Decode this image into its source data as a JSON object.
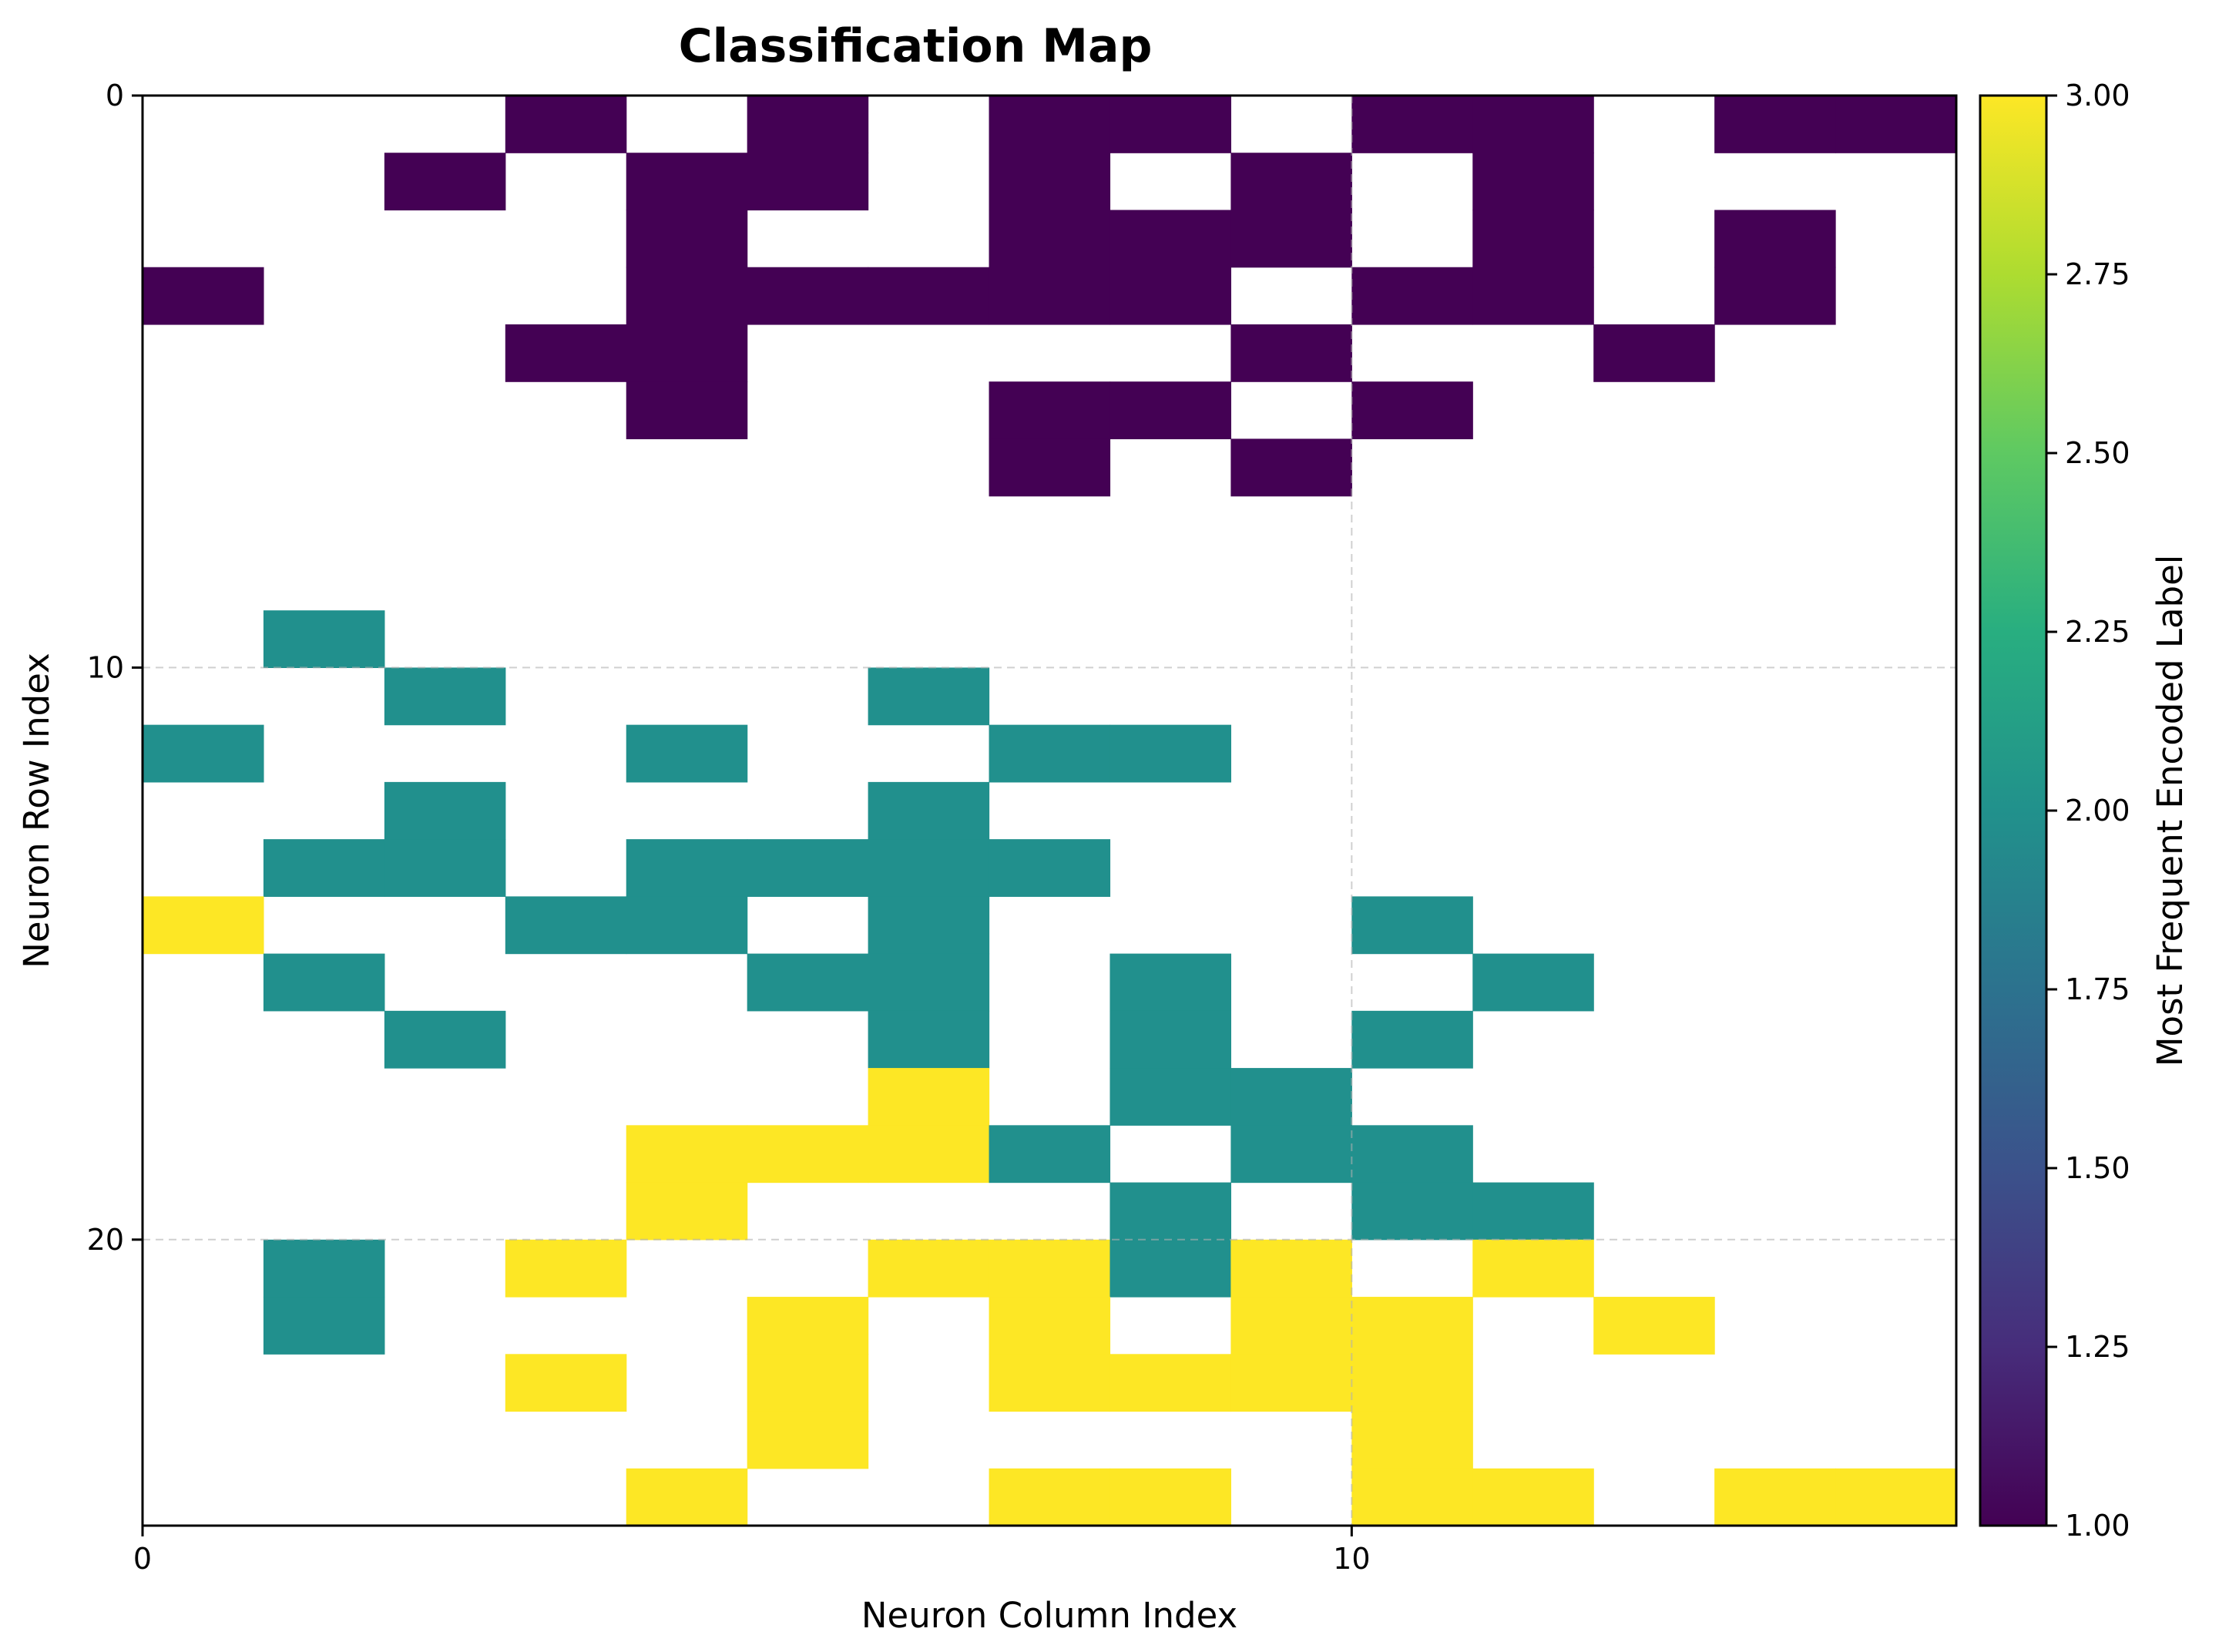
{
  "chart_data": {
    "type": "heatmap",
    "title": "Classification Map",
    "xlabel": "Neuron Column Index",
    "ylabel": "Neuron Row Index",
    "colorbar_label": "Most Frequent Encoded Label",
    "n_rows": 25,
    "n_cols": 15,
    "xlim": [
      0,
      15
    ],
    "ylim": [
      25,
      0
    ],
    "y_inverted": true,
    "x_ticks": [
      0,
      10
    ],
    "y_ticks": [
      0,
      10,
      20
    ],
    "x_tick_labels": [
      "0",
      "10"
    ],
    "y_tick_labels": [
      "0",
      "10",
      "20"
    ],
    "grid": true,
    "colormap": "viridis",
    "color_range": [
      1.0,
      3.0
    ],
    "colorbar_ticks": [
      1.0,
      1.25,
      1.5,
      1.75,
      2.0,
      2.25,
      2.5,
      2.75,
      3.0
    ],
    "colorbar_tick_labels": [
      "1.00",
      "1.25",
      "1.50",
      "1.75",
      "2.00",
      "2.25",
      "2.50",
      "2.75",
      "3.00"
    ],
    "empty_value": 0,
    "colors": {
      "1": "#440154",
      "2": "#21908d",
      "3": "#fde725"
    },
    "grid_values": [
      [
        0,
        0,
        0,
        1,
        0,
        1,
        0,
        1,
        1,
        0,
        1,
        1,
        0,
        1,
        1
      ],
      [
        0,
        0,
        1,
        0,
        1,
        1,
        0,
        1,
        0,
        1,
        0,
        1,
        0,
        0,
        0
      ],
      [
        0,
        0,
        0,
        0,
        1,
        0,
        0,
        1,
        1,
        1,
        0,
        1,
        0,
        1,
        0
      ],
      [
        1,
        0,
        0,
        0,
        1,
        1,
        1,
        1,
        1,
        0,
        1,
        1,
        0,
        1,
        0
      ],
      [
        0,
        0,
        0,
        1,
        1,
        0,
        0,
        0,
        0,
        1,
        0,
        0,
        1,
        0,
        0
      ],
      [
        0,
        0,
        0,
        0,
        1,
        0,
        0,
        1,
        1,
        0,
        1,
        0,
        0,
        0,
        0
      ],
      [
        0,
        0,
        0,
        0,
        0,
        0,
        0,
        1,
        0,
        1,
        0,
        0,
        0,
        0,
        0
      ],
      [
        0,
        0,
        0,
        0,
        0,
        0,
        0,
        0,
        0,
        0,
        0,
        0,
        0,
        0,
        0
      ],
      [
        0,
        0,
        0,
        0,
        0,
        0,
        0,
        0,
        0,
        0,
        0,
        0,
        0,
        0,
        0
      ],
      [
        0,
        2,
        0,
        0,
        0,
        0,
        0,
        0,
        0,
        0,
        0,
        0,
        0,
        0,
        0
      ],
      [
        0,
        0,
        2,
        0,
        0,
        0,
        2,
        0,
        0,
        0,
        0,
        0,
        0,
        0,
        0
      ],
      [
        2,
        0,
        0,
        0,
        2,
        0,
        0,
        2,
        2,
        0,
        0,
        0,
        0,
        0,
        0
      ],
      [
        0,
        0,
        2,
        0,
        0,
        0,
        2,
        0,
        0,
        0,
        0,
        0,
        0,
        0,
        0
      ],
      [
        0,
        2,
        2,
        0,
        2,
        2,
        2,
        2,
        0,
        0,
        0,
        0,
        0,
        0,
        0
      ],
      [
        3,
        0,
        0,
        2,
        2,
        0,
        2,
        0,
        0,
        0,
        2,
        0,
        0,
        0,
        0
      ],
      [
        0,
        2,
        0,
        0,
        0,
        2,
        2,
        0,
        2,
        0,
        0,
        2,
        0,
        0,
        0
      ],
      [
        0,
        0,
        2,
        0,
        0,
        0,
        2,
        0,
        2,
        0,
        2,
        0,
        0,
        0,
        0
      ],
      [
        0,
        0,
        0,
        0,
        0,
        0,
        3,
        0,
        2,
        2,
        0,
        0,
        0,
        0,
        0
      ],
      [
        0,
        0,
        0,
        0,
        3,
        3,
        3,
        2,
        0,
        2,
        2,
        0,
        0,
        0,
        0
      ],
      [
        0,
        0,
        0,
        0,
        3,
        0,
        0,
        0,
        2,
        0,
        2,
        2,
        0,
        0,
        0
      ],
      [
        0,
        2,
        0,
        3,
        0,
        0,
        3,
        3,
        2,
        3,
        0,
        3,
        0,
        0,
        0
      ],
      [
        0,
        2,
        0,
        0,
        0,
        3,
        0,
        3,
        0,
        3,
        3,
        0,
        3,
        0,
        0
      ],
      [
        0,
        0,
        0,
        3,
        0,
        3,
        0,
        3,
        3,
        3,
        3,
        0,
        0,
        0,
        0
      ],
      [
        0,
        0,
        0,
        0,
        0,
        3,
        0,
        0,
        0,
        0,
        3,
        0,
        0,
        0,
        0
      ],
      [
        0,
        0,
        0,
        0,
        3,
        0,
        0,
        3,
        3,
        0,
        3,
        3,
        0,
        3,
        3
      ]
    ]
  }
}
